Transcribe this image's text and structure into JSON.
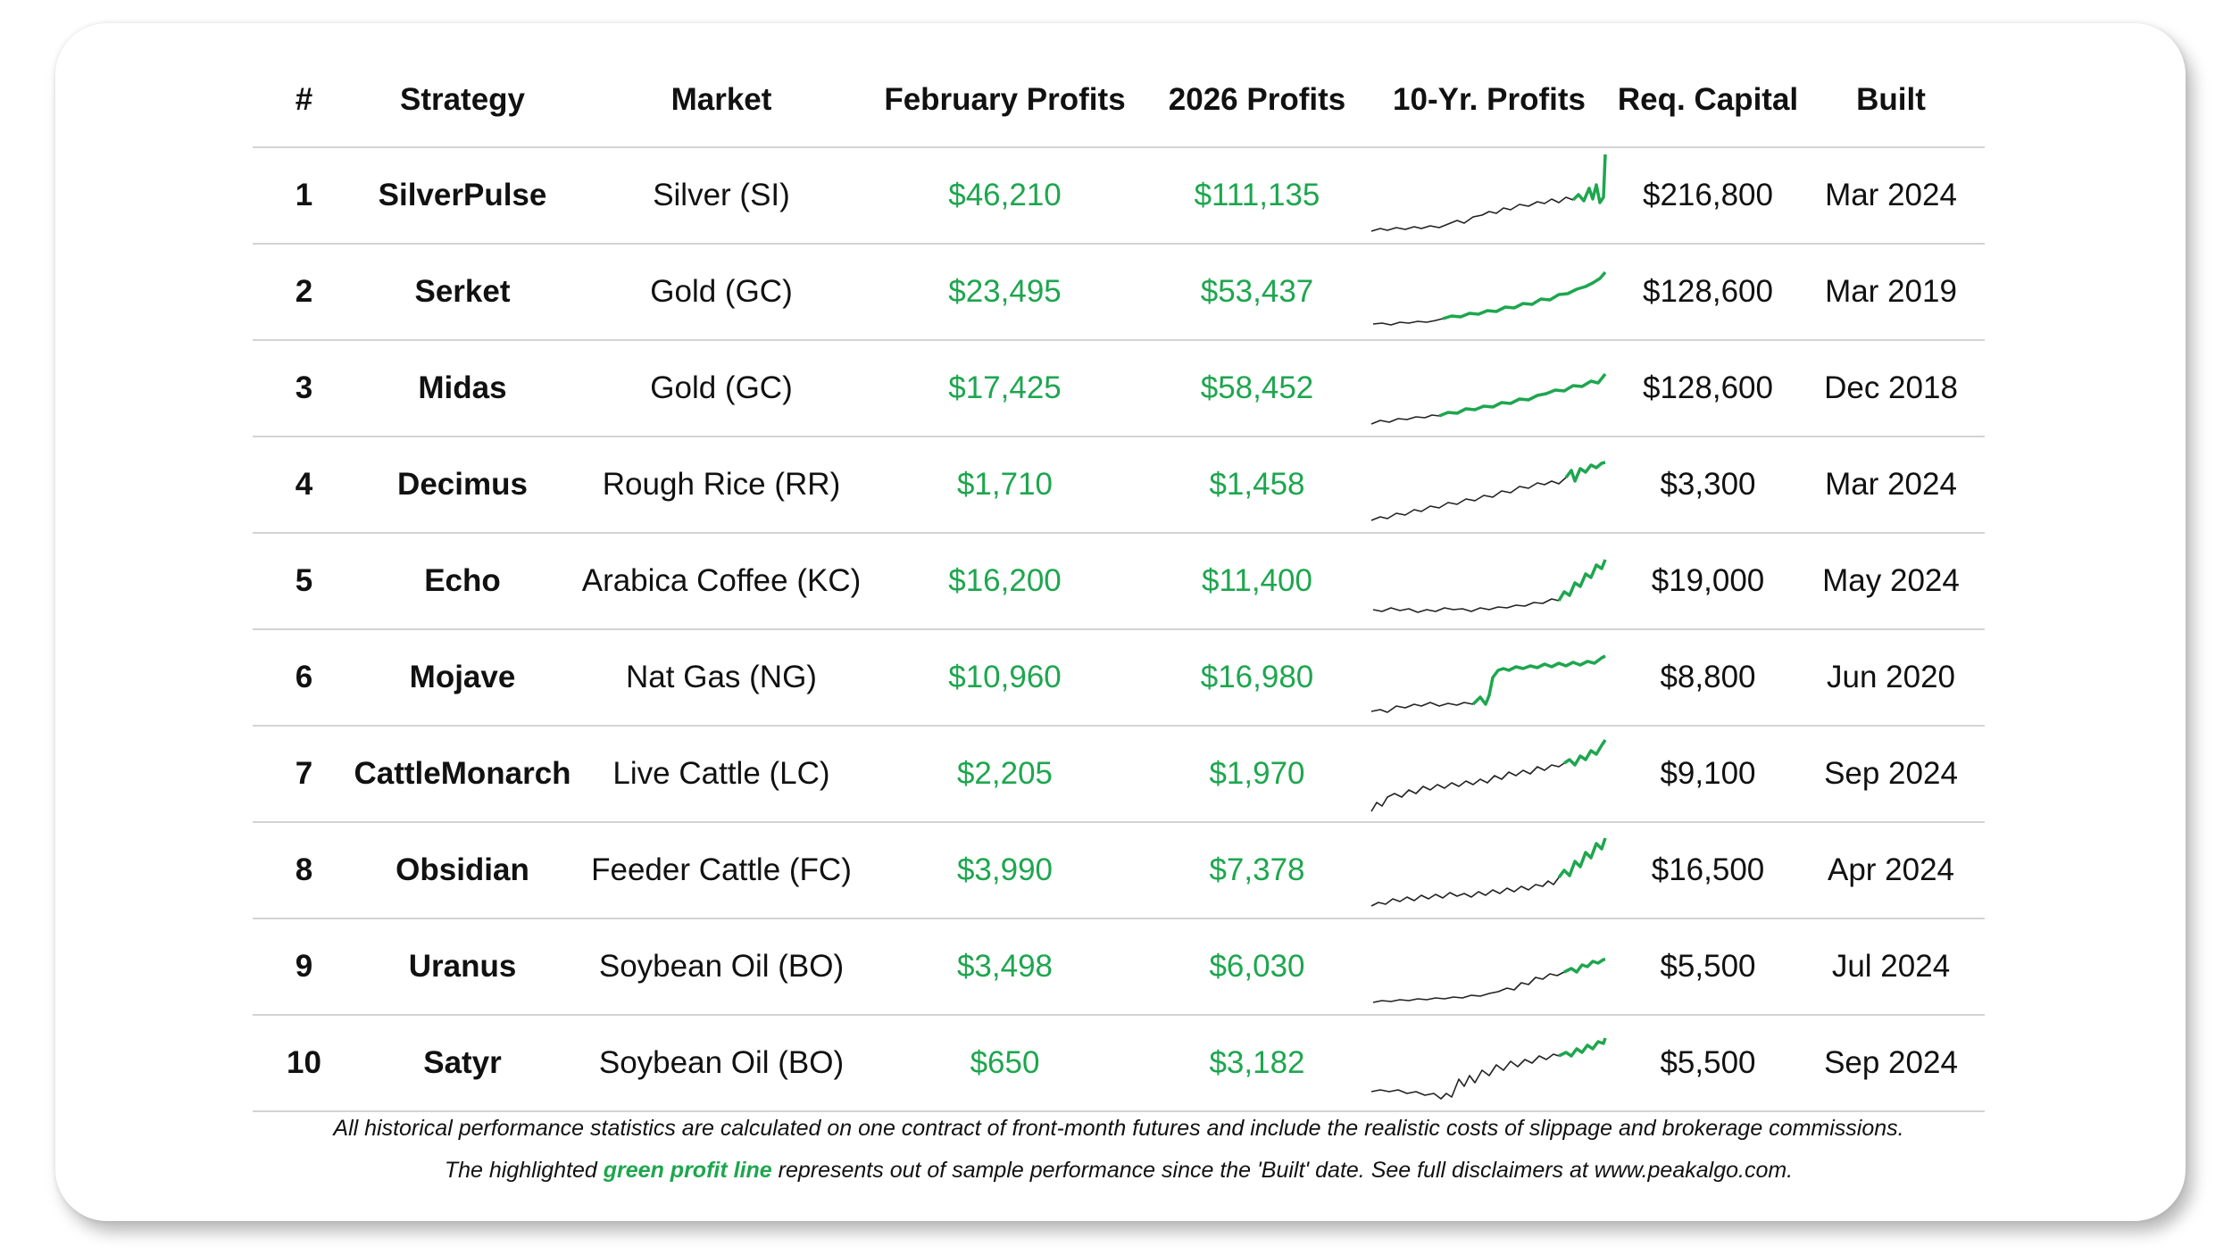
{
  "headers": {
    "num": "#",
    "strategy": "Strategy",
    "market": "Market",
    "february": "February Profits",
    "ytd": "2026 Profits",
    "tenyr": "10-Yr. Profits",
    "capital": "Req. Capital",
    "built": "Built"
  },
  "rows": [
    {
      "num": "1",
      "strategy": "SilverPulse",
      "market": "Silver (SI)",
      "february": "$46,210",
      "ytd": "$111,135",
      "capital": "$216,800",
      "built": "Mar 2024"
    },
    {
      "num": "2",
      "strategy": "Serket",
      "market": "Gold (GC)",
      "february": "$23,495",
      "ytd": "$53,437",
      "capital": "$128,600",
      "built": "Mar 2019"
    },
    {
      "num": "3",
      "strategy": "Midas",
      "market": "Gold (GC)",
      "february": "$17,425",
      "ytd": "$58,452",
      "capital": "$128,600",
      "built": "Dec 2018"
    },
    {
      "num": "4",
      "strategy": "Decimus",
      "market": "Rough Rice (RR)",
      "february": "$1,710",
      "ytd": "$1,458",
      "capital": "$3,300",
      "built": "Mar 2024"
    },
    {
      "num": "5",
      "strategy": "Echo",
      "market": "Arabica Coffee (KC)",
      "february": "$16,200",
      "ytd": "$11,400",
      "capital": "$19,000",
      "built": "May 2024"
    },
    {
      "num": "6",
      "strategy": "Mojave",
      "market": "Nat Gas (NG)",
      "february": "$10,960",
      "ytd": "$16,980",
      "capital": "$8,800",
      "built": "Jun 2020"
    },
    {
      "num": "7",
      "strategy": "CattleMonarch",
      "market": "Live Cattle (LC)",
      "february": "$2,205",
      "ytd": "$1,970",
      "capital": "$9,100",
      "built": "Sep 2024"
    },
    {
      "num": "8",
      "strategy": "Obsidian",
      "market": "Feeder Cattle (FC)",
      "february": "$3,990",
      "ytd": "$7,378",
      "capital": "$16,500",
      "built": "Apr 2024"
    },
    {
      "num": "9",
      "strategy": "Uranus",
      "market": "Soybean Oil (BO)",
      "february": "$3,498",
      "ytd": "$6,030",
      "capital": "$5,500",
      "built": "Jul 2024"
    },
    {
      "num": "10",
      "strategy": "Satyr",
      "market": "Soybean Oil (BO)",
      "february": "$650",
      "ytd": "$3,182",
      "capital": "$5,500",
      "built": "Sep 2024"
    }
  ],
  "footnote": {
    "line1": "All historical performance statistics are calculated on one contract of front-month futures and include the realistic costs of slippage and brokerage commissions.",
    "line2_before": "The highlighted ",
    "line2_green": "green profit line",
    "line2_after": " represents out of sample performance since the 'Built' date. See full disclaimers at www.peakalgo.com."
  },
  "colors": {
    "profit_green": "#1ea64f",
    "history_line": "#222222",
    "divider": "#d3d3d3"
  }
}
